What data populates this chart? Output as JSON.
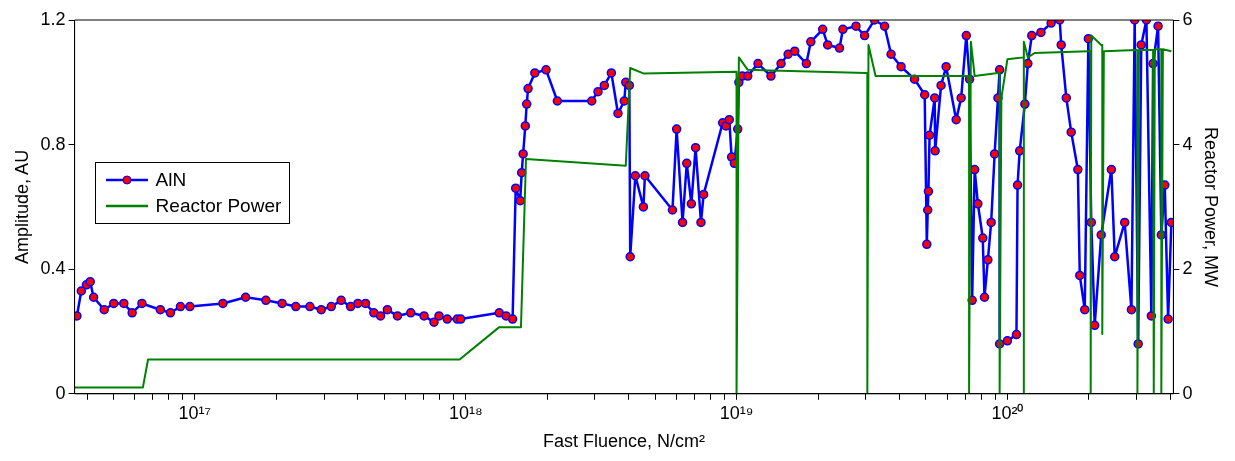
{
  "chart_data": {
    "type": "line",
    "xlabel": "Fast Fluence, N/cm²",
    "ylabel": "Amplitude, AU",
    "y2label": "Reactor Power, MW",
    "log": "x",
    "grid": false,
    "legend": "left",
    "xlim": [
      3.6e+16,
      4.1e+20
    ],
    "xticks": [
      {
        "value": 4e+16,
        "label": null
      },
      {
        "value": 5e+16,
        "label": null
      },
      {
        "value": 6e+16,
        "label": null
      },
      {
        "value": 7e+16,
        "label": null
      },
      {
        "value": 8e+16,
        "label": null
      },
      {
        "value": 9e+16,
        "label": null
      },
      {
        "value": 1e+17,
        "label": "10¹⁷"
      },
      {
        "value": 2e+17,
        "label": null
      },
      {
        "value": 3e+17,
        "label": null
      },
      {
        "value": 4e+17,
        "label": null
      },
      {
        "value": 5e+17,
        "label": null
      },
      {
        "value": 6e+17,
        "label": null
      },
      {
        "value": 7e+17,
        "label": null
      },
      {
        "value": 8e+17,
        "label": null
      },
      {
        "value": 9e+17,
        "label": null
      },
      {
        "value": 1e+18,
        "label": "10¹⁸"
      },
      {
        "value": 2e+18,
        "label": null
      },
      {
        "value": 3e+18,
        "label": null
      },
      {
        "value": 4e+18,
        "label": null
      },
      {
        "value": 5e+18,
        "label": null
      },
      {
        "value": 6e+18,
        "label": null
      },
      {
        "value": 7e+18,
        "label": null
      },
      {
        "value": 8e+18,
        "label": null
      },
      {
        "value": 9e+18,
        "label": null
      },
      {
        "value": 1e+19,
        "label": "10¹⁹"
      },
      {
        "value": 2e+19,
        "label": null
      },
      {
        "value": 3e+19,
        "label": null
      },
      {
        "value": 4e+19,
        "label": null
      },
      {
        "value": 5e+19,
        "label": null
      },
      {
        "value": 6e+19,
        "label": null
      },
      {
        "value": 7e+19,
        "label": null
      },
      {
        "value": 8e+19,
        "label": null
      },
      {
        "value": 9e+19,
        "label": null
      },
      {
        "value": 1e+20,
        "label": "10²⁰"
      },
      {
        "value": 2e+20,
        "label": null
      },
      {
        "value": 3e+20,
        "label": null
      },
      {
        "value": 4e+20,
        "label": null
      }
    ],
    "ylim": [
      0,
      1.2
    ],
    "yticks": [
      0,
      0.4,
      0.8,
      1.2
    ],
    "y2lim": [
      0,
      6
    ],
    "y2ticks": [
      0,
      2,
      4,
      6
    ],
    "series": [
      {
        "name": "AlN",
        "color": "#0000ff",
        "marker": "circle",
        "x": [
          3.67e+16,
          3.81e+16,
          3.98e+16,
          4.11e+16,
          4.23e+16,
          4.63e+16,
          5.02e+16,
          5.47e+16,
          5.87e+16,
          6.38e+16,
          7.46e+16,
          8.13e+16,
          8.85e+16,
          9.59e+16,
          1.27e+17,
          1.54e+17,
          1.83e+17,
          2.1e+17,
          2.36e+17,
          2.66e+17,
          2.93e+17,
          3.19e+17,
          3.47e+17,
          3.76e+17,
          4e+17,
          4.27e+17,
          4.58e+17,
          4.85e+17,
          5.14e+17,
          5.6e+17,
          6.27e+17,
          7.02e+17,
          7.64e+17,
          7.97e+17,
          8.55e+17,
          9.31e+17,
          9.59e+17,
          1.33e+18,
          1.41e+18,
          1.49e+18,
          1.53e+18,
          1.59e+18,
          1.61e+18,
          1.63e+18,
          1.66e+18,
          1.68e+18,
          1.7e+18,
          1.8e+18,
          1.98e+18,
          2.18e+18,
          2.92e+18,
          3.08e+18,
          3.25e+18,
          3.45e+18,
          3.65e+18,
          3.85e+18,
          3.9e+18,
          4.02e+18,
          4.05e+18,
          4.23e+18,
          4.53e+18,
          4.59e+18,
          5.8e+18,
          6.01e+18,
          6.32e+18,
          6.55e+18,
          6.81e+18,
          7.06e+18,
          7.39e+18,
          7.56e+18,
          8.89e+18,
          9.14e+18,
          9.4e+18,
          9.59e+18,
          9.82e+18,
          1.01e+19,
          1.02e+19,
          1.05e+19,
          1.1e+19,
          1.2e+19,
          1.34e+19,
          1.46e+19,
          1.55e+19,
          1.64e+19,
          1.81e+19,
          1.88e+19,
          2.08e+19,
          2.17e+19,
          2.4e+19,
          2.47e+19,
          2.76e+19,
          2.97e+19,
          3.23e+19,
          3.52e+19,
          3.72e+19,
          4.05e+19,
          4.54e+19,
          4.95e+19,
          5.04e+19,
          5.08e+19,
          5.11e+19,
          5.16e+19,
          5.39e+19,
          5.41e+19,
          5.69e+19,
          5.94e+19,
          6.47e+19,
          6.75e+19,
          7.05e+19,
          7.25e+19,
          7.41e+19,
          7.57e+19,
          7.78e+19,
          8.11e+19,
          8.23e+19,
          8.47e+19,
          8.71e+19,
          8.97e+19,
          9.23e+19,
          9.36e+19,
          9.36e+19,
          1e+20,
          1.08e+20,
          1.09e+20,
          1.11e+20,
          1.16e+20,
          1.19e+20,
          1.23e+20,
          1.33e+20,
          1.45e+20,
          1.56e+20,
          1.58e+20,
          1.65e+20,
          1.72e+20,
          1.82e+20,
          1.85e+20,
          1.93e+20,
          1.99e+20,
          2.04e+20,
          2.1e+20,
          2.22e+20,
          2.42e+20,
          2.49e+20,
          2.71e+20,
          2.87e+20,
          2.95e+20,
          3.04e+20,
          3.12e+20,
          3.26e+20,
          3.4e+20,
          3.45e+20,
          3.6e+20,
          3.7e+20,
          3.81e+20,
          3.92e+20,
          4.03e+20
        ],
        "values": [
          0.25,
          0.33,
          0.35,
          0.36,
          0.31,
          0.27,
          0.29,
          0.29,
          0.26,
          0.29,
          0.27,
          0.26,
          0.28,
          0.28,
          0.29,
          0.31,
          0.3,
          0.29,
          0.28,
          0.28,
          0.27,
          0.28,
          0.3,
          0.28,
          0.29,
          0.29,
          0.26,
          0.25,
          0.27,
          0.25,
          0.26,
          0.25,
          0.23,
          0.25,
          0.24,
          0.24,
          0.24,
          0.26,
          0.25,
          0.24,
          0.66,
          0.62,
          0.71,
          0.77,
          0.86,
          0.93,
          0.98,
          1.03,
          1.04,
          0.94,
          0.94,
          0.97,
          0.99,
          1.03,
          0.9,
          0.94,
          1.0,
          0.99,
          0.44,
          0.7,
          0.6,
          0.7,
          0.59,
          0.85,
          0.55,
          0.74,
          0.61,
          0.79,
          0.55,
          0.64,
          0.87,
          0.86,
          0.88,
          0.76,
          0.74,
          0.85,
          1.0,
          1.02,
          1.02,
          1.06,
          1.02,
          1.06,
          1.09,
          1.1,
          1.06,
          1.13,
          1.17,
          1.12,
          1.11,
          1.17,
          1.18,
          1.15,
          1.2,
          1.18,
          1.09,
          1.05,
          1.01,
          0.96,
          0.48,
          0.59,
          0.65,
          0.83,
          0.95,
          0.78,
          0.99,
          1.05,
          0.88,
          0.95,
          1.15,
          1.01,
          0.3,
          0.72,
          0.61,
          0.5,
          0.31,
          0.43,
          0.55,
          0.77,
          0.95,
          1.04,
          0.16,
          0.17,
          0.19,
          0.67,
          0.78,
          0.93,
          1.06,
          1.15,
          1.16,
          1.19,
          1.2,
          1.12,
          0.95,
          0.84,
          0.72,
          0.38,
          0.27,
          1.14,
          0.55,
          0.22,
          0.51,
          0.72,
          0.44,
          0.55,
          0.27,
          1.2,
          0.16,
          1.12,
          1.2,
          0.25,
          1.06,
          1.18,
          0.51,
          0.67,
          0.24,
          0.55
        ]
      },
      {
        "name": "Reactor Power",
        "color": "#008000",
        "marker": "none",
        "axis": "y2",
        "x": [
          3.6e+16,
          6.43e+16,
          6.72e+16,
          9.5e+17,
          1.33e+18,
          1.6e+18,
          1.67e+18,
          3.9e+18,
          4.05e+18,
          4.55e+18,
          9.94e+18,
          1e+19,
          1e+19,
          1.02e+19,
          1.1e+19,
          3e+19,
          3.04e+19,
          3.04e+19,
          3.07e+19,
          3.26e+19,
          7.18e+19,
          7.22e+19,
          7.22e+19,
          7.33e+19,
          7.57e+19,
          9.23e+19,
          9.36e+19,
          9.36e+19,
          9.5e+19,
          1e+20,
          1.15e+20,
          1.15e+20,
          1.15e+20,
          1.19e+20,
          1.26e+20,
          1.99e+20,
          2.03e+20,
          2.03e+20,
          2.04e+20,
          2.22e+20,
          2.24e+20,
          2.24e+20,
          2.27e+20,
          2.99e+20,
          3.02e+20,
          3.02e+20,
          3.06e+20,
          3.45e+20,
          3.47e+20,
          3.47e+20,
          3.5e+20,
          3.66e+20,
          3.7e+20,
          3.7e+20,
          3.75e+20,
          4.03e+20
        ],
        "values": [
          0.1,
          0.1,
          0.55,
          0.55,
          1.07,
          1.07,
          3.77,
          3.66,
          5.23,
          5.14,
          5.17,
          5.17,
          0,
          5.4,
          5.2,
          5.15,
          5.15,
          0,
          5.6,
          5.1,
          5.1,
          5.1,
          0,
          5.65,
          5.1,
          5.15,
          5.15,
          0,
          4.75,
          5.37,
          5.4,
          0,
          5.65,
          5.4,
          5.47,
          5.5,
          5.5,
          0,
          5.75,
          5.6,
          5.6,
          0.96,
          5.5,
          5.52,
          5.52,
          0,
          5.52,
          5.52,
          5.52,
          0,
          5.53,
          5.53,
          5.53,
          0,
          5.53,
          5.5
        ]
      }
    ]
  }
}
